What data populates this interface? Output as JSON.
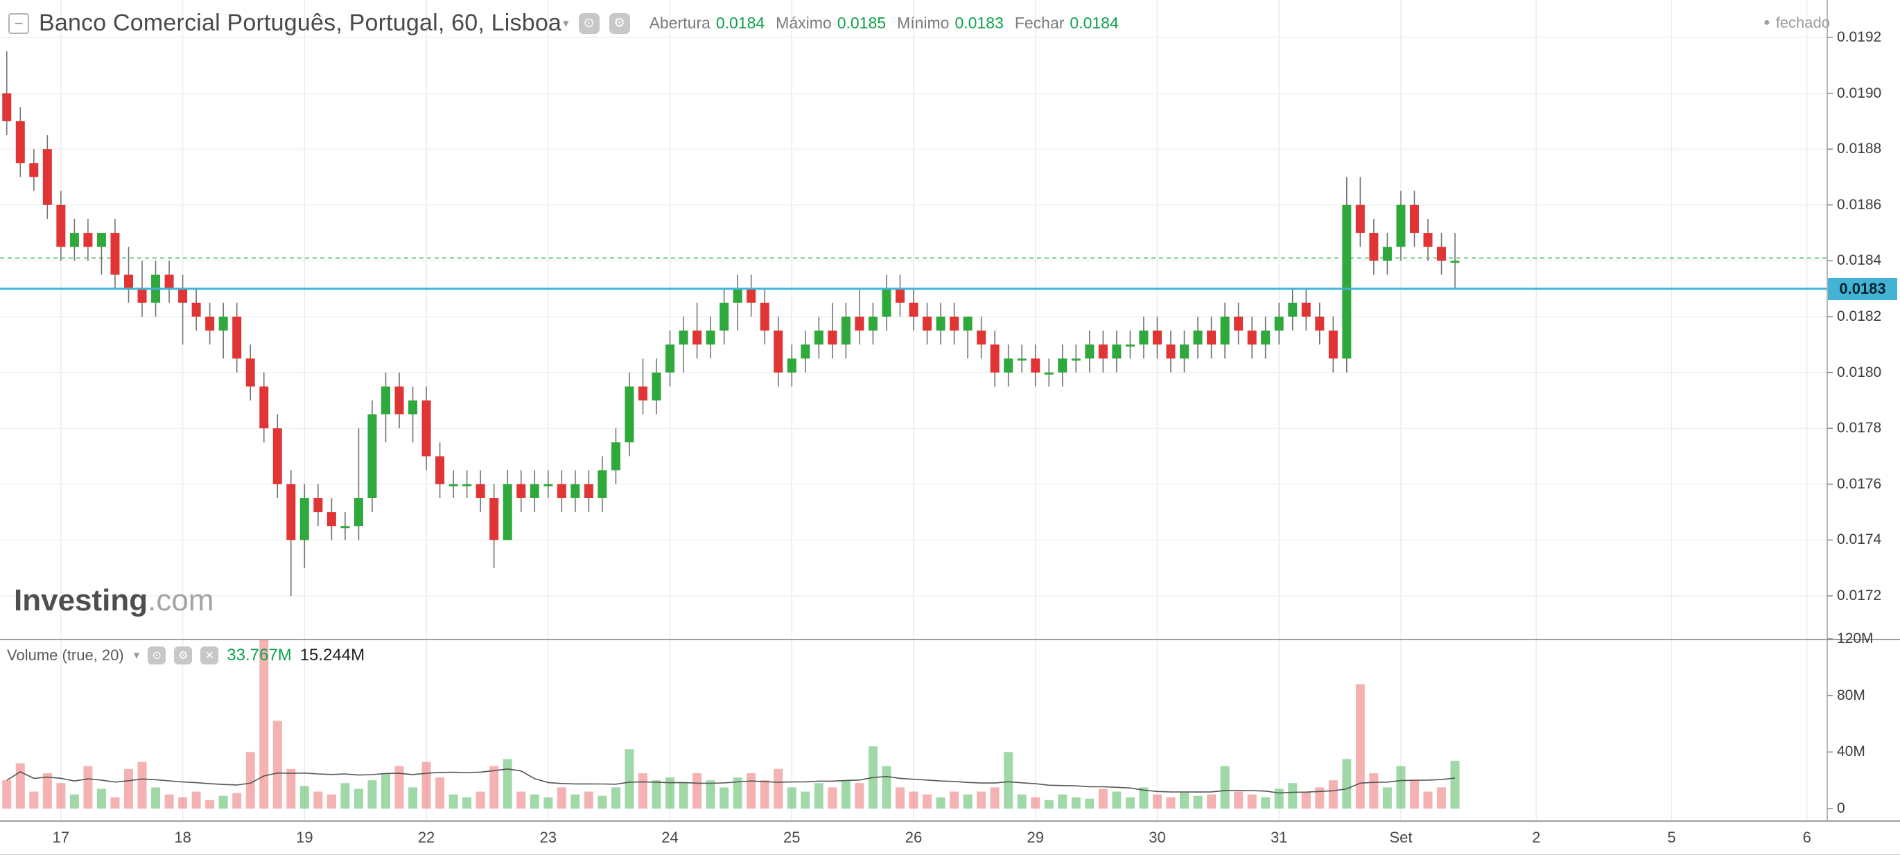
{
  "header": {
    "collapse_glyph": "−",
    "title": "Banco Comercial Português, Portugal, 60, Lisboa",
    "ohlc": [
      {
        "label": "Abertura",
        "value": "0.0184"
      },
      {
        "label": "Máximo",
        "value": "0.0185"
      },
      {
        "label": "Mínimo",
        "value": "0.0183"
      },
      {
        "label": "Fechar",
        "value": "0.0184"
      }
    ],
    "status": "fechado"
  },
  "volume_header": {
    "label": "Volume (true, 20)",
    "value_current": "33.767M",
    "value_ma": "15.244M"
  },
  "watermark": {
    "brand": "Investing",
    "suffix": ".com"
  },
  "icons": {
    "gear": "⚙",
    "target": "⊙",
    "close": "✕",
    "caret": "▾",
    "dot": "●"
  },
  "colors": {
    "up": "#2fa83c",
    "down": "#e13434",
    "up_volume": "rgba(47,168,60,0.45)",
    "down_volume": "rgba(225,52,52,0.38)",
    "wick": "#757575",
    "ma_line": "#555555",
    "current_price_line": "#42b3d5",
    "current_price_badge": "#42b3d5",
    "prev_close_line": "#3cb54a",
    "green_text": "#0fa04c",
    "grid_h": "#f1f1f1",
    "grid_v": "#ebebeb",
    "frame": "#9e9e9e"
  },
  "price_axis": {
    "ticks": [
      "0.0192",
      "0.0190",
      "0.0188",
      "0.0186",
      "0.0184",
      "0.0182",
      "0.0180",
      "0.0178",
      "0.0176",
      "0.0174",
      "0.0172"
    ],
    "last_price_label": "0.0183"
  },
  "volume_axis": {
    "ticks": [
      {
        "label": "120M",
        "value": 120
      },
      {
        "label": "80M",
        "value": 80
      },
      {
        "label": "40M",
        "value": 40
      },
      {
        "label": "0",
        "value": 0
      }
    ]
  },
  "time_axis": {
    "labels": [
      {
        "text": "17",
        "slot": 4
      },
      {
        "text": "18",
        "slot": 13
      },
      {
        "text": "19",
        "slot": 22
      },
      {
        "text": "22",
        "slot": 31
      },
      {
        "text": "23",
        "slot": 40
      },
      {
        "text": "24",
        "slot": 49
      },
      {
        "text": "25",
        "slot": 58
      },
      {
        "text": "26",
        "slot": 67
      },
      {
        "text": "29",
        "slot": 76
      },
      {
        "text": "30",
        "slot": 85
      },
      {
        "text": "31",
        "slot": 94
      },
      {
        "text": "Set",
        "slot": 103
      },
      {
        "text": "2",
        "slot": 113
      },
      {
        "text": "5",
        "slot": 123
      },
      {
        "text": "6",
        "slot": 133
      }
    ],
    "total_slots": 135
  },
  "chart_data": {
    "type": "candlestick",
    "title": "Banco Comercial Português, Portugal, 60, Lisboa",
    "interval_minutes": 60,
    "exchange": "Lisboa",
    "market_status": "fechado",
    "ylim": [
      0.0172,
      0.0192
    ],
    "current_price": 0.0183,
    "prev_close_level": 0.01841,
    "last_bar": {
      "open": 0.0184,
      "high": 0.0185,
      "low": 0.0183,
      "close": 0.0184
    },
    "volume_legend": {
      "current": "33.767M",
      "ma20": "15.244M"
    },
    "session_labels": [
      "17",
      "18",
      "19",
      "22",
      "23",
      "24",
      "25",
      "26",
      "29",
      "30",
      "31",
      "Set"
    ],
    "fields": [
      "open",
      "high",
      "low",
      "close",
      "volume_millions"
    ],
    "candles": [
      [
        0.019,
        0.01915,
        0.01885,
        0.0189,
        20
      ],
      [
        0.0189,
        0.01895,
        0.0187,
        0.01875,
        32
      ],
      [
        0.01875,
        0.0188,
        0.01865,
        0.0187,
        12
      ],
      [
        0.0188,
        0.01885,
        0.01855,
        0.0186,
        25
      ],
      [
        0.0186,
        0.01865,
        0.0184,
        0.01845,
        18
      ],
      [
        0.01845,
        0.01855,
        0.0184,
        0.0185,
        10
      ],
      [
        0.0185,
        0.01855,
        0.0184,
        0.01845,
        30
      ],
      [
        0.01845,
        0.0185,
        0.01835,
        0.0185,
        14
      ],
      [
        0.0185,
        0.01855,
        0.0183,
        0.01835,
        8
      ],
      [
        0.01835,
        0.01845,
        0.01825,
        0.0183,
        28
      ],
      [
        0.0183,
        0.0184,
        0.0182,
        0.01825,
        33
      ],
      [
        0.01825,
        0.0184,
        0.0182,
        0.01835,
        15
      ],
      [
        0.01835,
        0.0184,
        0.01825,
        0.0183,
        10
      ],
      [
        0.0183,
        0.01835,
        0.0181,
        0.01825,
        8
      ],
      [
        0.01825,
        0.0183,
        0.01815,
        0.0182,
        12
      ],
      [
        0.0182,
        0.01825,
        0.0181,
        0.01815,
        6
      ],
      [
        0.01815,
        0.01825,
        0.01805,
        0.0182,
        9
      ],
      [
        0.0182,
        0.01825,
        0.018,
        0.01805,
        11
      ],
      [
        0.01805,
        0.0181,
        0.0179,
        0.01795,
        40
      ],
      [
        0.01795,
        0.018,
        0.01775,
        0.0178,
        120
      ],
      [
        0.0178,
        0.01785,
        0.01755,
        0.0176,
        62
      ],
      [
        0.0176,
        0.01765,
        0.0172,
        0.0174,
        28
      ],
      [
        0.0174,
        0.0176,
        0.0173,
        0.01755,
        16
      ],
      [
        0.01755,
        0.0176,
        0.01745,
        0.0175,
        12
      ],
      [
        0.0175,
        0.01755,
        0.0174,
        0.01745,
        10
      ],
      [
        0.01745,
        0.0175,
        0.0174,
        0.01745,
        18
      ],
      [
        0.01745,
        0.0178,
        0.0174,
        0.01755,
        14
      ],
      [
        0.01755,
        0.0179,
        0.0175,
        0.01785,
        20
      ],
      [
        0.01785,
        0.018,
        0.01775,
        0.01795,
        25
      ],
      [
        0.01795,
        0.018,
        0.0178,
        0.01785,
        30
      ],
      [
        0.01785,
        0.01795,
        0.01775,
        0.0179,
        15
      ],
      [
        0.0179,
        0.01795,
        0.01765,
        0.0177,
        33
      ],
      [
        0.0177,
        0.01775,
        0.01755,
        0.0176,
        22
      ],
      [
        0.0176,
        0.01765,
        0.01755,
        0.0176,
        10
      ],
      [
        0.0176,
        0.01765,
        0.01755,
        0.0176,
        8
      ],
      [
        0.0176,
        0.01765,
        0.0175,
        0.01755,
        12
      ],
      [
        0.01755,
        0.0176,
        0.0173,
        0.0174,
        30
      ],
      [
        0.0174,
        0.01765,
        0.0174,
        0.0176,
        35
      ],
      [
        0.0176,
        0.01765,
        0.0175,
        0.01755,
        12
      ],
      [
        0.01755,
        0.01765,
        0.0175,
        0.0176,
        10
      ],
      [
        0.0176,
        0.01765,
        0.01755,
        0.0176,
        8
      ],
      [
        0.0176,
        0.01765,
        0.0175,
        0.01755,
        15
      ],
      [
        0.01755,
        0.01765,
        0.0175,
        0.0176,
        10
      ],
      [
        0.0176,
        0.01765,
        0.0175,
        0.01755,
        12
      ],
      [
        0.01755,
        0.0177,
        0.0175,
        0.01765,
        9
      ],
      [
        0.01765,
        0.0178,
        0.0176,
        0.01775,
        15
      ],
      [
        0.01775,
        0.018,
        0.0177,
        0.01795,
        42
      ],
      [
        0.01795,
        0.01805,
        0.01785,
        0.0179,
        25
      ],
      [
        0.0179,
        0.01805,
        0.01785,
        0.018,
        20
      ],
      [
        0.018,
        0.01815,
        0.01795,
        0.0181,
        22
      ],
      [
        0.0181,
        0.0182,
        0.018,
        0.01815,
        18
      ],
      [
        0.01815,
        0.01825,
        0.01805,
        0.0181,
        25
      ],
      [
        0.0181,
        0.0182,
        0.01805,
        0.01815,
        20
      ],
      [
        0.01815,
        0.0183,
        0.0181,
        0.01825,
        15
      ],
      [
        0.01825,
        0.01835,
        0.01815,
        0.0183,
        22
      ],
      [
        0.0183,
        0.01835,
        0.0182,
        0.01825,
        25
      ],
      [
        0.01825,
        0.0183,
        0.0181,
        0.01815,
        20
      ],
      [
        0.01815,
        0.0182,
        0.01795,
        0.018,
        28
      ],
      [
        0.018,
        0.0181,
        0.01795,
        0.01805,
        15
      ],
      [
        0.01805,
        0.01815,
        0.018,
        0.0181,
        12
      ],
      [
        0.0181,
        0.0182,
        0.01805,
        0.01815,
        18
      ],
      [
        0.01815,
        0.01825,
        0.01805,
        0.0181,
        15
      ],
      [
        0.0181,
        0.01825,
        0.01805,
        0.0182,
        20
      ],
      [
        0.0182,
        0.0183,
        0.0181,
        0.01815,
        18
      ],
      [
        0.01815,
        0.01825,
        0.0181,
        0.0182,
        44
      ],
      [
        0.0182,
        0.01835,
        0.01815,
        0.0183,
        30
      ],
      [
        0.0183,
        0.01835,
        0.0182,
        0.01825,
        15
      ],
      [
        0.01825,
        0.0183,
        0.01815,
        0.0182,
        12
      ],
      [
        0.0182,
        0.01825,
        0.0181,
        0.01815,
        10
      ],
      [
        0.01815,
        0.01825,
        0.0181,
        0.0182,
        8
      ],
      [
        0.0182,
        0.01825,
        0.0181,
        0.01815,
        12
      ],
      [
        0.01815,
        0.0182,
        0.01805,
        0.0182,
        10
      ],
      [
        0.01815,
        0.0182,
        0.01805,
        0.0181,
        12
      ],
      [
        0.0181,
        0.01815,
        0.01795,
        0.018,
        15
      ],
      [
        0.018,
        0.0181,
        0.01795,
        0.01805,
        40
      ],
      [
        0.01805,
        0.0181,
        0.018,
        0.01805,
        10
      ],
      [
        0.01805,
        0.0181,
        0.01795,
        0.018,
        8
      ],
      [
        0.018,
        0.01805,
        0.01795,
        0.018,
        6
      ],
      [
        0.018,
        0.0181,
        0.01795,
        0.01805,
        10
      ],
      [
        0.01805,
        0.0181,
        0.018,
        0.01805,
        8
      ],
      [
        0.01805,
        0.01815,
        0.018,
        0.0181,
        7
      ],
      [
        0.0181,
        0.01815,
        0.018,
        0.01805,
        14
      ],
      [
        0.01805,
        0.01815,
        0.018,
        0.0181,
        12
      ],
      [
        0.0181,
        0.01815,
        0.01805,
        0.0181,
        8
      ],
      [
        0.0181,
        0.0182,
        0.01805,
        0.01815,
        15
      ],
      [
        0.01815,
        0.0182,
        0.01805,
        0.0181,
        10
      ],
      [
        0.0181,
        0.01815,
        0.018,
        0.01805,
        8
      ],
      [
        0.01805,
        0.01815,
        0.018,
        0.0181,
        12
      ],
      [
        0.0181,
        0.0182,
        0.01805,
        0.01815,
        9
      ],
      [
        0.01815,
        0.0182,
        0.01805,
        0.0181,
        10
      ],
      [
        0.0181,
        0.01825,
        0.01805,
        0.0182,
        30
      ],
      [
        0.0182,
        0.01825,
        0.0181,
        0.01815,
        12
      ],
      [
        0.01815,
        0.0182,
        0.01805,
        0.0181,
        10
      ],
      [
        0.0181,
        0.0182,
        0.01805,
        0.01815,
        8
      ],
      [
        0.01815,
        0.01825,
        0.0181,
        0.0182,
        14
      ],
      [
        0.0182,
        0.0183,
        0.01815,
        0.01825,
        18
      ],
      [
        0.01825,
        0.0183,
        0.01815,
        0.0182,
        12
      ],
      [
        0.0182,
        0.01825,
        0.0181,
        0.01815,
        15
      ],
      [
        0.01815,
        0.0182,
        0.018,
        0.01805,
        20
      ],
      [
        0.01805,
        0.0187,
        0.018,
        0.0186,
        35
      ],
      [
        0.0186,
        0.0187,
        0.01845,
        0.0185,
        88
      ],
      [
        0.0185,
        0.01855,
        0.01835,
        0.0184,
        25
      ],
      [
        0.0184,
        0.0185,
        0.01835,
        0.01845,
        15
      ],
      [
        0.01845,
        0.01865,
        0.0184,
        0.0186,
        30
      ],
      [
        0.0186,
        0.01865,
        0.01845,
        0.0185,
        20
      ],
      [
        0.0185,
        0.01855,
        0.0184,
        0.01845,
        12
      ],
      [
        0.01845,
        0.0185,
        0.01835,
        0.0184,
        15
      ],
      [
        0.0184,
        0.0185,
        0.0183,
        0.0184,
        33.767
      ]
    ]
  }
}
